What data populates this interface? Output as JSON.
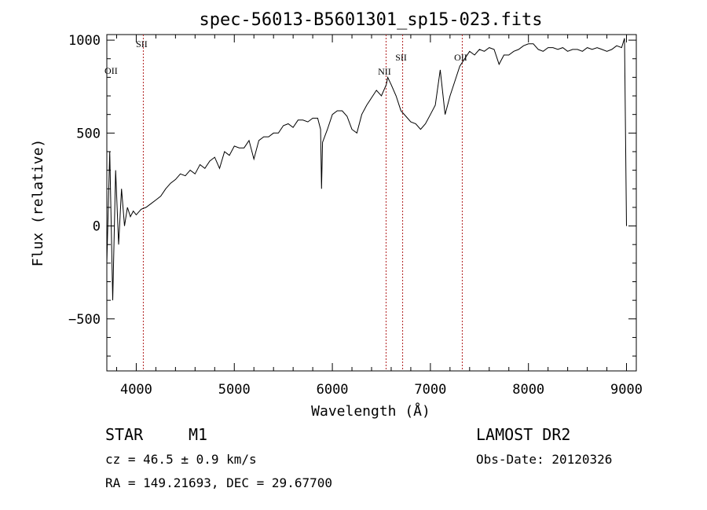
{
  "chart_data": {
    "type": "line",
    "title": "spec-56013-B5601301_sp15-023.fits",
    "xlabel": "Wavelength (Å)",
    "ylabel": "Flux (relative)",
    "xlim": [
      3700,
      9100
    ],
    "ylim": [
      -780,
      1030
    ],
    "x_ticks": [
      4000,
      5000,
      6000,
      7000,
      8000,
      9000
    ],
    "y_ticks": [
      -500,
      0,
      500,
      1000
    ],
    "grid": false,
    "series": [
      {
        "x": [
          3700,
          3730,
          3760,
          3790,
          3820,
          3850,
          3880,
          3910,
          3940,
          3970,
          4000,
          4050,
          4100,
          4150,
          4200,
          4250,
          4300,
          4350,
          4400,
          4450,
          4500,
          4550,
          4600,
          4650,
          4700,
          4750,
          4800,
          4850,
          4900,
          4950,
          5000,
          5050,
          5100,
          5150,
          5200,
          5250,
          5300,
          5350,
          5400,
          5450,
          5500,
          5550,
          5600,
          5650,
          5700,
          5750,
          5800,
          5850,
          5880,
          5890,
          5900,
          5950,
          6000,
          6050,
          6100,
          6150,
          6200,
          6250,
          6300,
          6350,
          6400,
          6450,
          6500,
          6550,
          6565,
          6600,
          6650,
          6700,
          6750,
          6800,
          6850,
          6900,
          6950,
          7000,
          7050,
          7100,
          7150,
          7200,
          7250,
          7300,
          7350,
          7400,
          7450,
          7500,
          7550,
          7600,
          7650,
          7700,
          7750,
          7800,
          7850,
          7900,
          7950,
          8000,
          8050,
          8100,
          8150,
          8200,
          8250,
          8300,
          8350,
          8400,
          8450,
          8500,
          8550,
          8600,
          8650,
          8700,
          8750,
          8800,
          8850,
          8900,
          8950,
          8980,
          9000
        ],
        "y": [
          -200,
          400,
          -400,
          300,
          -100,
          200,
          0,
          100,
          50,
          80,
          60,
          90,
          100,
          120,
          140,
          160,
          200,
          230,
          250,
          280,
          270,
          300,
          280,
          330,
          310,
          350,
          370,
          310,
          400,
          380,
          430,
          420,
          420,
          460,
          360,
          460,
          480,
          480,
          500,
          500,
          540,
          550,
          530,
          570,
          570,
          560,
          580,
          580,
          520,
          200,
          450,
          520,
          600,
          620,
          620,
          590,
          520,
          500,
          600,
          650,
          690,
          730,
          700,
          760,
          800,
          760,
          700,
          620,
          590,
          560,
          550,
          520,
          550,
          600,
          650,
          840,
          600,
          700,
          780,
          860,
          900,
          940,
          920,
          950,
          940,
          960,
          950,
          870,
          920,
          920,
          940,
          950,
          970,
          980,
          980,
          950,
          940,
          960,
          960,
          950,
          960,
          940,
          950,
          950,
          940,
          960,
          950,
          960,
          950,
          940,
          950,
          970,
          960,
          1010,
          0
        ]
      }
    ],
    "annotations": [
      {
        "label": "OII",
        "x": 3727,
        "line": false
      },
      {
        "label": "SII",
        "x": 4072,
        "line": true
      },
      {
        "label": "NII",
        "x": 6548,
        "line": true
      },
      {
        "label": "SII",
        "x": 6717,
        "line": true
      },
      {
        "label": "OII",
        "x": 7325,
        "line": true
      }
    ]
  },
  "info": {
    "class": "STAR",
    "subclass": "M1",
    "velocity": "cz = 46.5 ± 0.9 km/s",
    "coords": "RA = 149.21693, DEC =  29.67700",
    "survey": "LAMOST DR2",
    "obs_date": "Obs-Date: 20120326"
  }
}
